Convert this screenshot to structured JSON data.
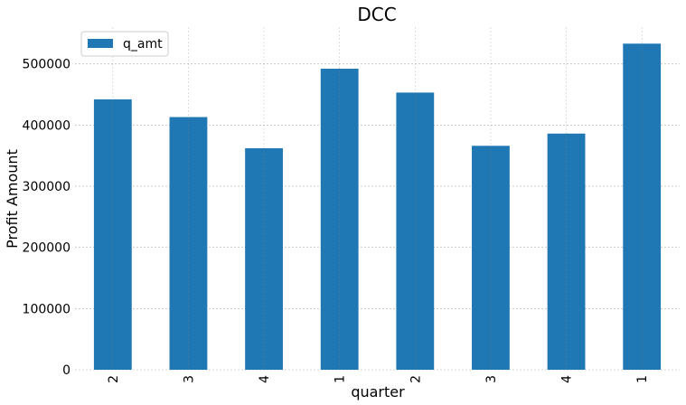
{
  "chart_data": {
    "type": "bar",
    "title": "DCC",
    "xlabel": "quarter",
    "ylabel": "Profit Amount",
    "categories": [
      "2",
      "3",
      "4",
      "1",
      "2",
      "3",
      "4",
      "1"
    ],
    "series": [
      {
        "name": "q_amt",
        "color": "#1f77b4",
        "values": [
          442000,
          413000,
          362000,
          492000,
          453000,
          366000,
          386000,
          533000
        ]
      }
    ],
    "ylim": [
      0,
      560000
    ],
    "yticks": [
      0,
      100000,
      200000,
      300000,
      400000,
      500000
    ],
    "ytick_labels": [
      "0",
      "100000",
      "200000",
      "300000",
      "400000",
      "500000"
    ],
    "grid": true,
    "legend_position": "top-left"
  }
}
